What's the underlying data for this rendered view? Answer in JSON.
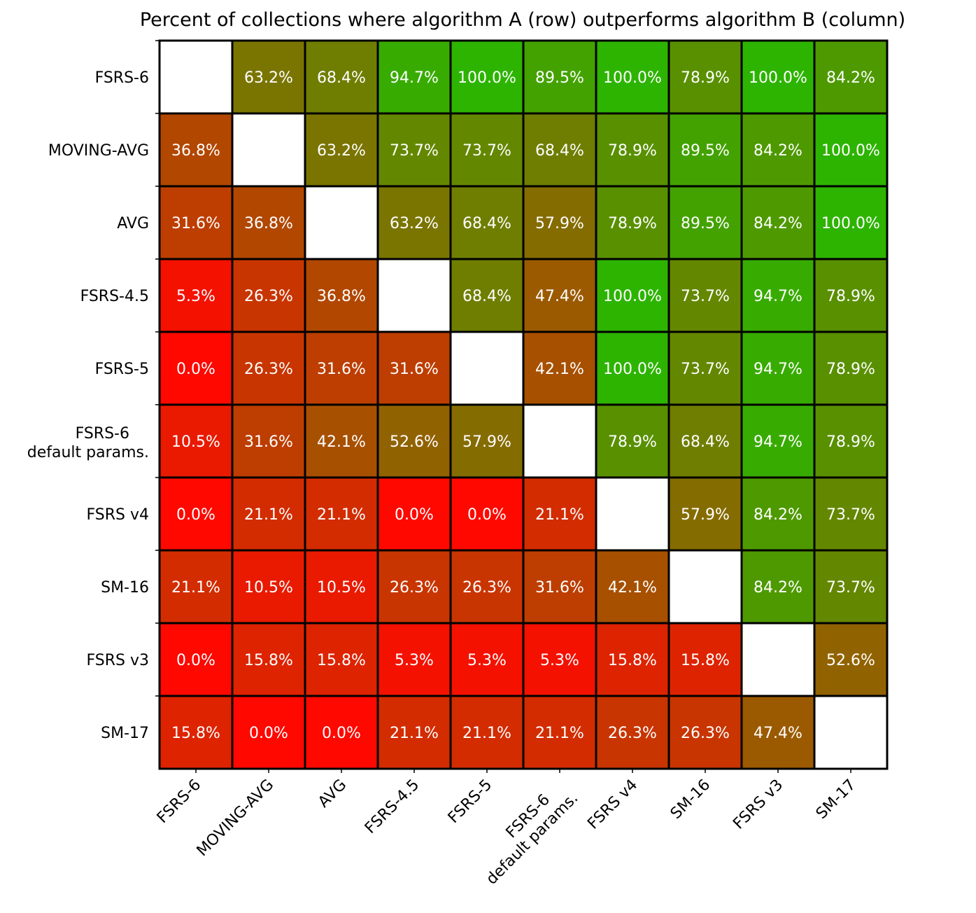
{
  "chart_data": {
    "type": "heatmap",
    "title": "Percent of collections where algorithm A (row) outperforms algorithm B (column)",
    "row_labels": [
      "FSRS-6",
      "MOVING-AVG",
      "AVG",
      "FSRS-4.5",
      "FSRS-5",
      "FSRS-6\ndefault params.",
      "FSRS v4",
      "SM-16",
      "FSRS v3",
      "SM-17"
    ],
    "col_labels": [
      "FSRS-6",
      "MOVING-AVG",
      "AVG",
      "FSRS-4.5",
      "FSRS-5",
      "FSRS-6\ndefault params.",
      "FSRS v4",
      "SM-16",
      "FSRS v3",
      "SM-17"
    ],
    "values": [
      [
        null,
        63.2,
        68.4,
        94.7,
        100.0,
        89.5,
        100.0,
        78.9,
        100.0,
        84.2
      ],
      [
        36.8,
        null,
        63.2,
        73.7,
        73.7,
        68.4,
        78.9,
        89.5,
        84.2,
        100.0
      ],
      [
        31.6,
        36.8,
        null,
        63.2,
        68.4,
        57.9,
        78.9,
        89.5,
        84.2,
        100.0
      ],
      [
        5.3,
        26.3,
        36.8,
        null,
        68.4,
        47.4,
        100.0,
        73.7,
        94.7,
        78.9
      ],
      [
        0.0,
        26.3,
        31.6,
        31.6,
        null,
        42.1,
        100.0,
        73.7,
        94.7,
        78.9
      ],
      [
        10.5,
        31.6,
        42.1,
        52.6,
        57.9,
        null,
        78.9,
        68.4,
        94.7,
        78.9
      ],
      [
        0.0,
        21.1,
        21.1,
        0.0,
        0.0,
        21.1,
        null,
        57.9,
        84.2,
        73.7
      ],
      [
        21.1,
        10.5,
        10.5,
        26.3,
        26.3,
        31.6,
        42.1,
        null,
        84.2,
        73.7
      ],
      [
        0.0,
        15.8,
        15.8,
        5.3,
        5.3,
        5.3,
        15.8,
        15.8,
        null,
        52.6
      ],
      [
        15.8,
        0.0,
        0.0,
        21.1,
        21.1,
        21.1,
        26.3,
        26.3,
        47.4,
        null
      ]
    ],
    "value_format": "%",
    "colors": {
      "low": "#ff0000",
      "high": "#00ff00",
      "empty": "#ffffff",
      "grid": "#000000",
      "text": "#ffffff"
    }
  }
}
